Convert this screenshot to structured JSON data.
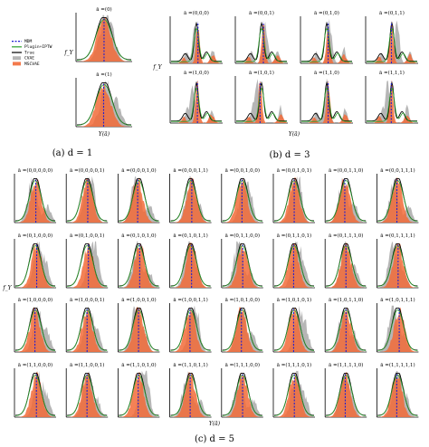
{
  "chart_data": {
    "type": "area",
    "legend": {
      "placement": "top-left of panel (a)",
      "entries": [
        {
          "name": "MDM",
          "color": "#1f1fd1",
          "style": "dashed"
        },
        {
          "name": "Plugin+IPTW",
          "color": "#2ca02c",
          "style": "line"
        },
        {
          "name": "True",
          "color": "#000000",
          "style": "line"
        },
        {
          "name": "CVAE",
          "color": "#9e9e9e",
          "style": "fill"
        },
        {
          "name": "MSCVAE",
          "color": "#f26b38",
          "style": "fill"
        }
      ]
    },
    "subfigures": [
      {
        "caption": "(a) d = 1",
        "ylabel": "f_Y",
        "xlabel": "Y(ā)",
        "panels": [
          "ā =(0)",
          "ā =(1)"
        ]
      },
      {
        "caption": "(b) d = 3",
        "ylabel": "f_Y",
        "xlabel": "Y(ā)",
        "panels": [
          "ā =(0,0,0)",
          "ā =(0,0,1)",
          "ā =(0,1,0)",
          "ā =(0,1,1)",
          "ā =(1,0,0)",
          "ā =(1,0,1)",
          "ā =(1,1,0)",
          "ā =(1,1,1)"
        ]
      },
      {
        "caption": "(c) d = 5",
        "ylabel": "f_Y",
        "xlabel": "Y(ā)",
        "panels": [
          "ā =(0,0,0,0,0)",
          "ā =(0,0,0,0,1)",
          "ā =(0,0,0,1,0)",
          "ā =(0,0,0,1,1)",
          "ā =(0,0,1,0,0)",
          "ā =(0,0,1,0,1)",
          "ā =(0,0,1,1,0)",
          "ā =(0,0,1,1,1)",
          "ā =(0,1,0,0,0)",
          "ā =(0,1,0,0,1)",
          "ā =(0,1,0,1,0)",
          "ā =(0,1,0,1,1)",
          "ā =(0,1,1,0,0)",
          "ā =(0,1,1,0,1)",
          "ā =(0,1,1,1,0)",
          "ā =(0,1,1,1,1)",
          "ā =(1,0,0,0,0)",
          "ā =(1,0,0,0,1)",
          "ā =(1,0,0,1,0)",
          "ā =(1,0,0,1,1)",
          "ā =(1,0,1,0,0)",
          "ā =(1,0,1,0,1)",
          "ā =(1,0,1,1,0)",
          "ā =(1,0,1,1,1)",
          "ā =(1,1,0,0,0)",
          "ā =(1,1,0,0,1)",
          "ā =(1,1,0,1,0)",
          "ā =(1,1,0,1,1)",
          "ā =(1,1,1,0,0)",
          "ā =(1,1,1,0,1)",
          "ā =(1,1,1,1,0)",
          "ā =(1,1,1,1,1)"
        ]
      }
    ]
  }
}
